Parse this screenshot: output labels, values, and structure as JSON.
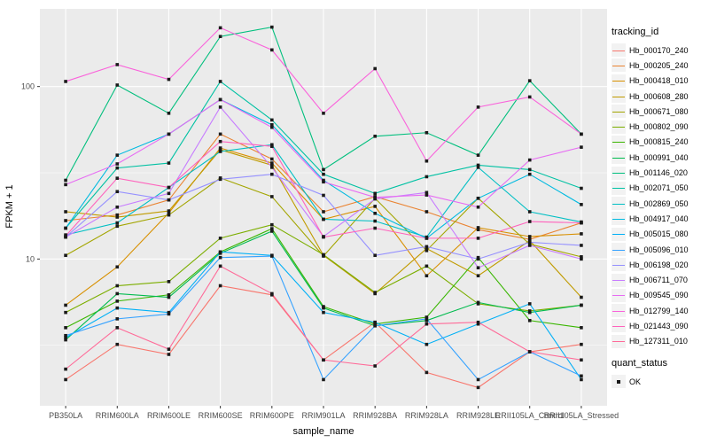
{
  "axes": {
    "x_title": "sample_name",
    "y_title": "FPKM + 1"
  },
  "legend": {
    "color_title": "tracking_id",
    "shape_title": "quant_status",
    "shape_items": [
      {
        "label": "OK",
        "marker": "black-square"
      }
    ]
  },
  "style": {
    "panel_bg": "#EBEBEB",
    "grid_color": "#FFFFFF",
    "point_color": "#1a1a1a",
    "tick_label_color": "#4D4D4D",
    "tick_color": "#333333"
  },
  "chart_data": {
    "type": "line",
    "title": "",
    "xlabel": "sample_name",
    "ylabel": "FPKM + 1",
    "y_scale": "log10",
    "ylim": [
      1.41,
      282
    ],
    "yticks": [
      10,
      100
    ],
    "ytick_labels": [
      "10",
      "100"
    ],
    "y_minor_gridlines": [
      3.162,
      31.62
    ],
    "grid": true,
    "legend_position": "right",
    "point_marker": "filled-black-square",
    "categories": [
      "PB350LA",
      "RRIM600LA",
      "RRIM600LE",
      "RRIM600SE",
      "RRIM600PE",
      "RRIM901LA",
      "RRIM928BA",
      "RRIM928LA",
      "RRIM928LE",
      "RRII105LA_Control",
      "RRII105LA_Stressed"
    ],
    "series": [
      {
        "name": "Hb_000170_240",
        "color": "#F8766D",
        "values": [
          2.0,
          3.2,
          2.8,
          7.0,
          6.2,
          2.6,
          4.3,
          2.2,
          1.8,
          2.9,
          3.2
        ]
      },
      {
        "name": "Hb_000205_240",
        "color": "#EA8331",
        "values": [
          16.7,
          18.0,
          22.0,
          53,
          38,
          18.8,
          23.0,
          18.8,
          14.8,
          13.0,
          16.2
        ]
      },
      {
        "name": "Hb_000418_010",
        "color": "#D89000",
        "values": [
          5.4,
          9.0,
          18.5,
          44,
          36,
          17.0,
          20.2,
          8.0,
          15.2,
          13.5,
          14.0
        ]
      },
      {
        "name": "Hb_000608_280",
        "color": "#C09B00",
        "values": [
          18.8,
          17.5,
          19.0,
          43,
          35,
          10.5,
          6.3,
          11.5,
          8.0,
          12.8,
          6.0
        ]
      },
      {
        "name": "Hb_000671_080",
        "color": "#A3A500",
        "values": [
          10.5,
          15.5,
          18.0,
          29.5,
          23.0,
          10.4,
          22.5,
          11.2,
          22.5,
          12.2,
          10.3
        ]
      },
      {
        "name": "Hb_000802_090",
        "color": "#7CAE00",
        "values": [
          4.9,
          7.0,
          7.4,
          13.2,
          15.8,
          10.6,
          6.4,
          9.1,
          5.5,
          5.0,
          5.4
        ]
      },
      {
        "name": "Hb_000815_240",
        "color": "#39B600",
        "values": [
          4.0,
          5.7,
          6.2,
          11.0,
          15.0,
          5.3,
          4.2,
          4.6,
          10.2,
          4.4,
          4.0
        ]
      },
      {
        "name": "Hb_000991_040",
        "color": "#00BB4E",
        "values": [
          3.4,
          6.3,
          6.0,
          10.8,
          14.5,
          5.2,
          4.1,
          4.4,
          5.6,
          4.9,
          5.4
        ]
      },
      {
        "name": "Hb_001146_020",
        "color": "#00BF7D",
        "values": [
          28.6,
          102,
          70,
          195,
          221,
          33,
          51.5,
          54,
          40,
          108,
          53
        ]
      },
      {
        "name": "Hb_002071_050",
        "color": "#00C1A3",
        "values": [
          15.1,
          33.7,
          36,
          107,
          64,
          31,
          24,
          30,
          35,
          33,
          25.7
        ]
      },
      {
        "name": "Hb_002869_050",
        "color": "#00BFC4",
        "values": [
          13.8,
          16.2,
          26,
          42,
          46,
          17,
          16.6,
          13.4,
          34,
          18.8,
          16.4
        ]
      },
      {
        "name": "Hb_004917_040",
        "color": "#00BAE0",
        "values": [
          15.1,
          40,
          53,
          84,
          60,
          28.6,
          18.4,
          13.2,
          22.5,
          31,
          20.7
        ]
      },
      {
        "name": "Hb_005015_080",
        "color": "#00B0F6",
        "values": [
          3.5,
          5.2,
          4.9,
          11.0,
          10.5,
          4.9,
          4.3,
          3.2,
          4.2,
          5.5,
          2.0
        ]
      },
      {
        "name": "Hb_005096_010",
        "color": "#35A2FF",
        "values": [
          3.6,
          4.5,
          4.8,
          10.2,
          10.4,
          2.0,
          4.1,
          4.5,
          2.0,
          2.9,
          2.1
        ]
      },
      {
        "name": "Hb_006198_020",
        "color": "#9590FF",
        "values": [
          13.4,
          24.6,
          22,
          29,
          31,
          23.4,
          10.5,
          11.8,
          10.0,
          12.5,
          12.0
        ]
      },
      {
        "name": "Hb_006711_070",
        "color": "#C77CFF",
        "values": [
          13.4,
          20,
          24,
          76,
          34,
          13.5,
          22.3,
          24.3,
          8.9,
          12.0,
          10.0
        ]
      },
      {
        "name": "Hb_009545_090",
        "color": "#E76BF3",
        "values": [
          27,
          35.6,
          53,
          84,
          58,
          28,
          22.8,
          23.5,
          20,
          37.5,
          44.5
        ]
      },
      {
        "name": "Hb_012799_140",
        "color": "#FA62DB",
        "values": [
          107,
          134,
          110,
          219,
          163,
          70,
          127,
          37,
          76,
          87,
          53
        ]
      },
      {
        "name": "Hb_021443_090",
        "color": "#FF62BC",
        "values": [
          13.6,
          29.4,
          26,
          48,
          45,
          13.4,
          15.1,
          13.2,
          13.2,
          16.5,
          16.2
        ]
      },
      {
        "name": "Hb_127311_010",
        "color": "#FF6A98",
        "values": [
          2.3,
          4.0,
          3.0,
          9.1,
          6.3,
          2.6,
          2.4,
          4.2,
          4.3,
          2.9,
          2.6
        ]
      }
    ]
  }
}
